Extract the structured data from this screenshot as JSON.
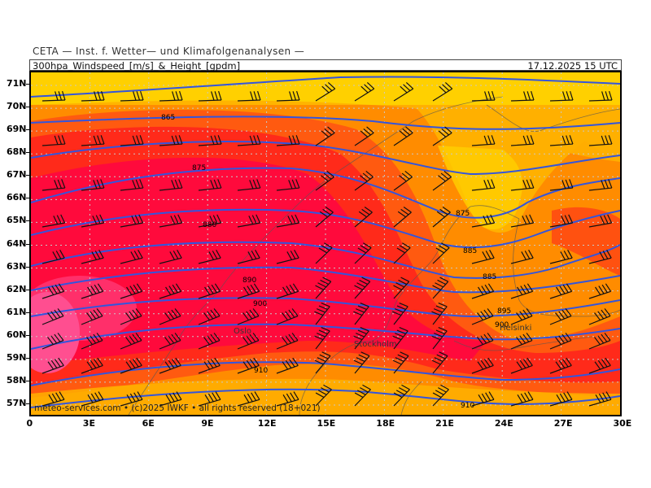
{
  "header": {
    "organization": "CETA — Inst. f. Wetter— und Klimafolgenanalysen —",
    "product": "300hpa_Windspeed_[m/s]_&_Height_[gpdm]",
    "valid_time": "17.12.2025 15 UTC"
  },
  "map": {
    "lat_range": [
      56.5,
      71.5
    ],
    "lon_range": [
      0,
      30
    ],
    "lat_labels": [
      "71N",
      "70N",
      "69N",
      "68N",
      "67N",
      "66N",
      "65N",
      "64N",
      "63N",
      "62N",
      "61N",
      "60N",
      "59N",
      "58N",
      "57N"
    ],
    "lon_labels": [
      "0",
      "3E",
      "6E",
      "9E",
      "12E",
      "15E",
      "18E",
      "21E",
      "24E",
      "27E",
      "30E"
    ],
    "cities": [
      "Oslo",
      "Stockholm",
      "Helsinki"
    ],
    "contour_labels": [
      "865",
      "875",
      "875",
      "880",
      "885",
      "885",
      "890",
      "895",
      "900",
      "900",
      "910",
      "910"
    ],
    "footer_text": "meteo-services.com • (c)2025 IWKF • all rights reserved (18+021)",
    "colors": {
      "jet_core": "#ff0a3c",
      "strong": "#ff2a1a",
      "medium": "#ff5a10",
      "moderate": "#ff8c00",
      "weak": "#ffb000",
      "calm": "#ffd000",
      "peak": "#ff4f90",
      "contour": "#3355dd",
      "barb": "#111111",
      "grid": "#c8c8c8",
      "coast": "#555555"
    }
  }
}
